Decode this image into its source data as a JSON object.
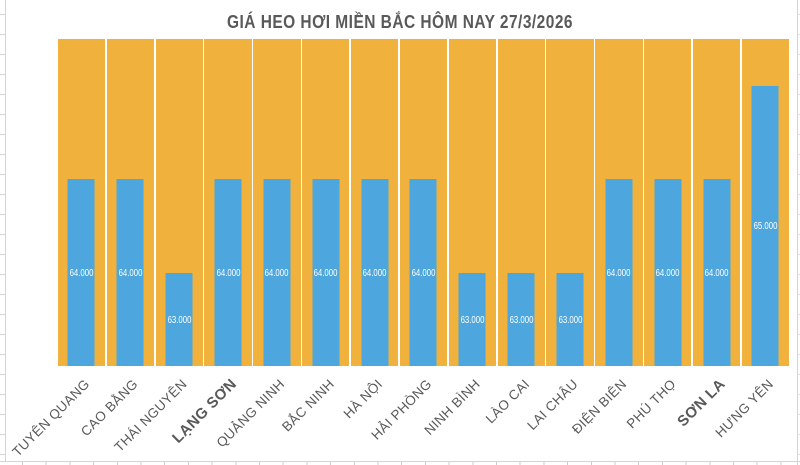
{
  "chart_data": {
    "type": "bar",
    "title": "GIÁ HEO HƠI MIỀN BẮC HÔM NAY 27/3/2026",
    "categories": [
      "TUYÊN QUANG",
      "CAO BẰNG",
      "THÁI NGUYÊN",
      "LẠNG SƠN",
      "QUẢNG NINH",
      "BẮC NINH",
      "HÀ NỘI",
      "HẢI PHÒNG",
      "NINH BÌNH",
      "LÀO CAI",
      "LAI CHÂU",
      "ĐIỆN BIÊN",
      "PHÚ THỌ",
      "SƠN LA",
      "HƯNG YÊN"
    ],
    "series": [
      {
        "name": "price",
        "values": [
          64000,
          64000,
          63000,
          64000,
          64000,
          64000,
          64000,
          64000,
          63000,
          63000,
          63000,
          64000,
          64000,
          64000,
          65000
        ],
        "data_labels": [
          "64.000",
          "64.000",
          "63.000",
          "64.000",
          "64.000",
          "64.000",
          "64.000",
          "64.000",
          "63.000",
          "63.000",
          "63.000",
          "64.000",
          "64.000",
          "64.000",
          "65.000"
        ]
      }
    ],
    "background_columns": {
      "full_height": true
    },
    "emphasized_categories": [
      "LẠNG SƠN",
      "SƠN LA"
    ],
    "xlabel": "",
    "ylabel": "",
    "ylim": [
      62000,
      65500
    ],
    "gridlines": false,
    "legend": false,
    "category_label_rotation_deg": 45,
    "data_label_position": "inside-center"
  },
  "colors": {
    "bar": "#4da7de",
    "background_column": "#f0b23d",
    "title_text": "#595959",
    "axis_text": "#595959",
    "data_label_text": "#ffffff",
    "worksheet_grid": "#d4d4d4"
  }
}
